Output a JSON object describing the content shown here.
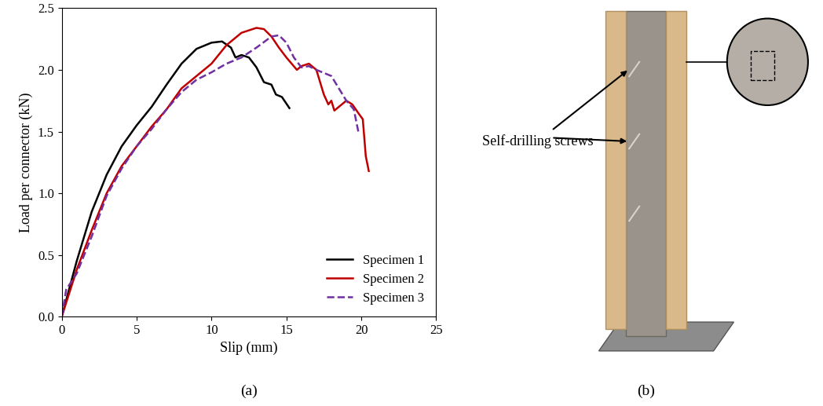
{
  "chart_data": {
    "type": "line",
    "caption": "(a)",
    "x_label": "Slip (mm)",
    "y_label": "Load per connector (kN)",
    "xlim": [
      0,
      25
    ],
    "xticks": [
      0,
      5,
      10,
      15,
      20,
      25
    ],
    "ylim": [
      0,
      2.5
    ],
    "yticks": [
      {
        "value": 0,
        "label": "0.0"
      },
      0.5,
      {
        "value": 1,
        "label": "1.0"
      },
      1.5,
      {
        "value": 2,
        "label": "2.0"
      },
      2.5
    ],
    "grid": false,
    "legend": "lower right",
    "series": [
      {
        "name": "Specimen 1",
        "color": "#000000",
        "line_style": "solid",
        "x": [
          0,
          1,
          2,
          3,
          4,
          5,
          6,
          7,
          8,
          9,
          10,
          10.7,
          11.3,
          11.6,
          12,
          12.5,
          13,
          13.5,
          14,
          14.3,
          14.7,
          15.2
        ],
        "values": [
          0,
          0.45,
          0.85,
          1.15,
          1.38,
          1.55,
          1.7,
          1.88,
          2.05,
          2.17,
          2.22,
          2.23,
          2.18,
          2.1,
          2.12,
          2.1,
          2.02,
          1.9,
          1.88,
          1.8,
          1.78,
          1.69
        ]
      },
      {
        "name": "Specimen 2",
        "color": "#c00000",
        "line_style": "solid",
        "x": [
          0,
          1,
          2,
          3,
          4,
          5,
          6,
          7,
          8,
          9,
          10,
          11,
          12,
          13,
          13.5,
          14,
          14.5,
          15,
          15.7,
          16,
          16.5,
          17,
          17.5,
          17.8,
          18,
          18.2,
          18.5,
          19,
          19.4,
          19.8,
          20.1,
          20.3,
          20.5
        ],
        "values": [
          0,
          0.38,
          0.7,
          1.0,
          1.22,
          1.38,
          1.54,
          1.68,
          1.85,
          1.95,
          2.05,
          2.2,
          2.3,
          2.34,
          2.33,
          2.27,
          2.18,
          2.1,
          2.0,
          2.03,
          2.05,
          2.0,
          1.8,
          1.72,
          1.75,
          1.67,
          1.7,
          1.75,
          1.72,
          1.65,
          1.6,
          1.3,
          1.18
        ]
      },
      {
        "name": "Specimen 3",
        "color": "#7030a0",
        "line_style": "dashed",
        "x": [
          0,
          0.3,
          1,
          2,
          3,
          4,
          5,
          6,
          7,
          8,
          9,
          10,
          11,
          12,
          13,
          14,
          14.5,
          15,
          15.5,
          16,
          16.5,
          17,
          18,
          18.5,
          19,
          19.5,
          19.8
        ],
        "values": [
          0,
          0.22,
          0.35,
          0.65,
          0.98,
          1.2,
          1.38,
          1.52,
          1.68,
          1.82,
          1.92,
          1.98,
          2.05,
          2.1,
          2.18,
          2.27,
          2.28,
          2.22,
          2.1,
          2.02,
          2.03,
          2.0,
          1.95,
          1.85,
          1.75,
          1.68,
          1.5
        ]
      }
    ]
  },
  "photo": {
    "caption": "(b)",
    "annotation": "Self-drilling screws"
  }
}
